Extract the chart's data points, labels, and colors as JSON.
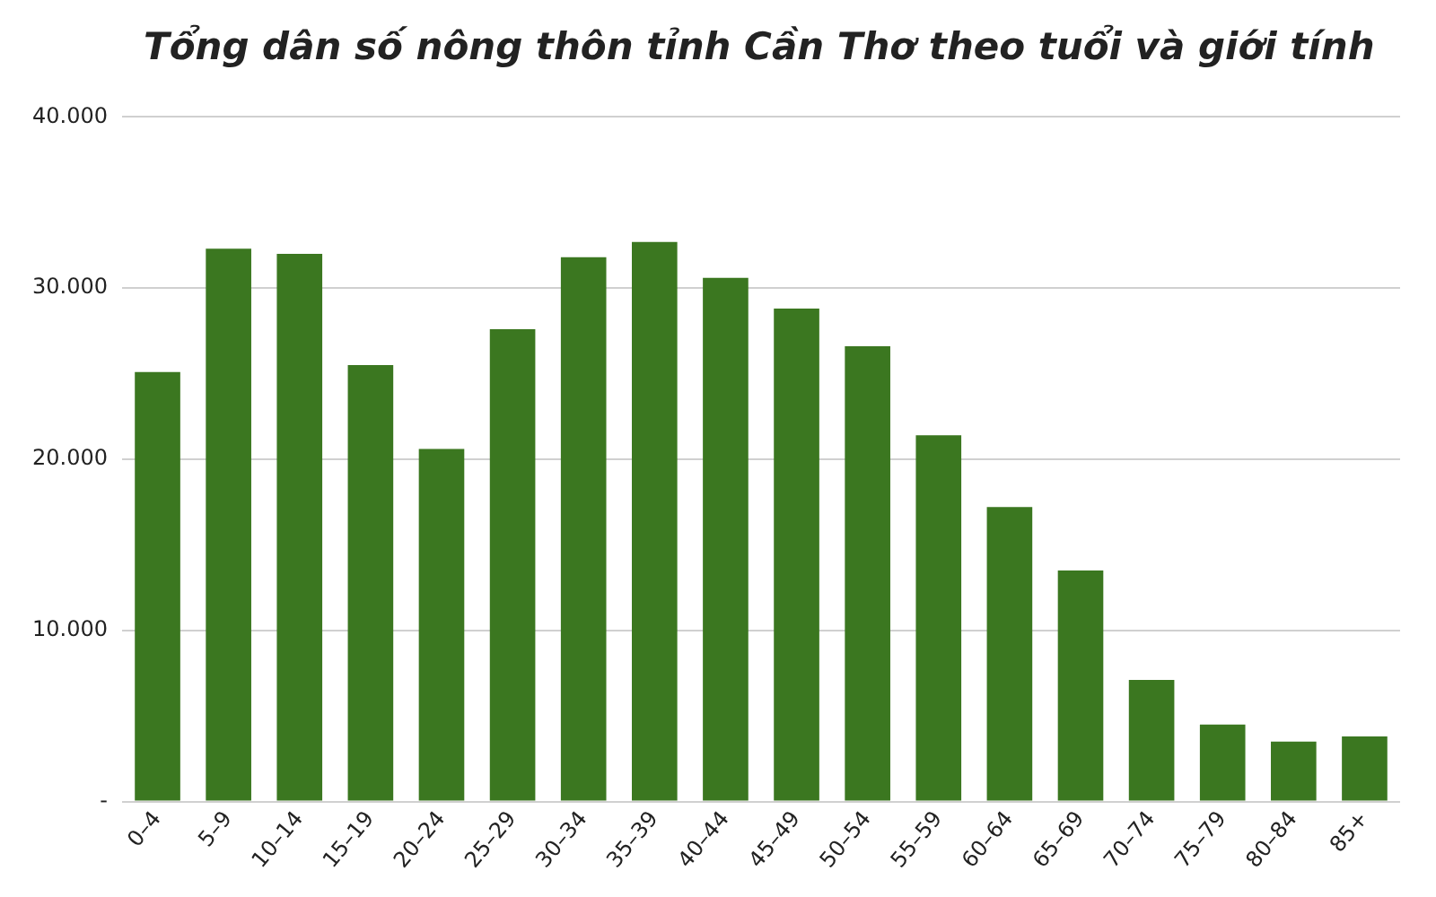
{
  "chart_data": {
    "type": "bar",
    "title": "Tổng dân số nông thôn tỉnh Cần Thơ theo tuổi và giới tính",
    "categories": [
      "0–4",
      "5–9",
      "10–14",
      "15–19",
      "20–24",
      "25–29",
      "30–34",
      "35–39",
      "40–44",
      "45–49",
      "50–54",
      "55–59",
      "60–64",
      "65–69",
      "70–74",
      "75–79",
      "80–84",
      "85+"
    ],
    "values": [
      25100,
      32300,
      32000,
      25500,
      20600,
      27600,
      31800,
      32700,
      30600,
      28800,
      26600,
      21400,
      17200,
      13500,
      7100,
      4500,
      3500,
      3800
    ],
    "color": "#3b7720",
    "ylim": [
      0,
      40000
    ],
    "yticks": [
      {
        "value": 0,
        "label": "-"
      },
      {
        "value": 10000,
        "label": "10.000"
      },
      {
        "value": 20000,
        "label": "20.000"
      },
      {
        "value": 30000,
        "label": "30.000"
      },
      {
        "value": 40000,
        "label": "40.000"
      }
    ],
    "grid": "y",
    "legend": false
  }
}
